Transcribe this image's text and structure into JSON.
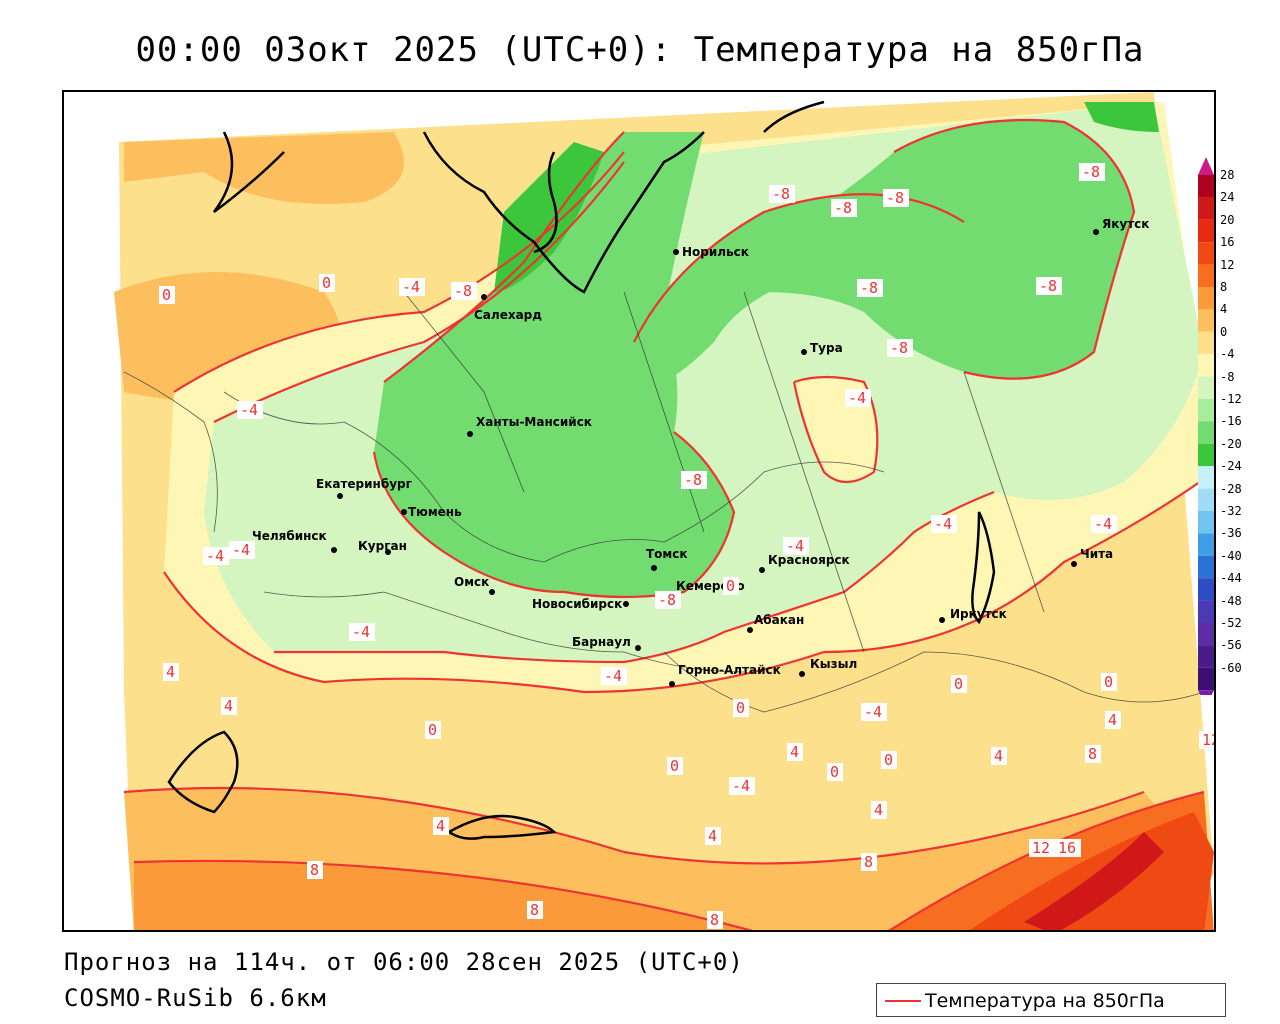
{
  "title": "00:00 03окт 2025 (UTC+0): Температура на 850гПа",
  "footer": {
    "forecast": "Прогноз на 114ч. от 06:00 28сен 2025 (UTC+0)",
    "model": "COSMO-RuSib 6.6км"
  },
  "legend": {
    "label": "Температура на 850гПа",
    "line_color": "#ee3333"
  },
  "colorbar": {
    "labels": [
      "28",
      "24",
      "20",
      "16",
      "12",
      "8",
      "4",
      "0",
      "-4",
      "-8",
      "-12",
      "-16",
      "-20",
      "-24",
      "-28",
      "-32",
      "-36",
      "-40",
      "-44",
      "-48",
      "-52",
      "-56",
      "-60"
    ],
    "colors": [
      "#b00020",
      "#d01818",
      "#e82a10",
      "#f04a14",
      "#f86e20",
      "#fb9a3a",
      "#fdbf5e",
      "#fde08c",
      "#fef6b4",
      "#d4f5c0",
      "#a6ee9c",
      "#72dc70",
      "#3cc63c",
      "#c8f0f8",
      "#a0dcf4",
      "#70c4ee",
      "#409ee6",
      "#2a72d4",
      "#2e4cc4",
      "#4a3ab4",
      "#5c2ca4",
      "#4a1c8a",
      "#3a1070"
    ]
  },
  "cities": [
    {
      "name": "Салехард"
    },
    {
      "name": "Норильск"
    },
    {
      "name": "Якутск"
    },
    {
      "name": "Тура"
    },
    {
      "name": "Ханты-Мансийск"
    },
    {
      "name": "Екатеринбург"
    },
    {
      "name": "Тюмень"
    },
    {
      "name": "Челябинск"
    },
    {
      "name": "Курган"
    },
    {
      "name": "Омск"
    },
    {
      "name": "Новосибирск"
    },
    {
      "name": "Томск"
    },
    {
      "name": "Кемерово"
    },
    {
      "name": "Красноярск"
    },
    {
      "name": "Абакан"
    },
    {
      "name": "Барнаул"
    },
    {
      "name": "Горно-Алтайск"
    },
    {
      "name": "Кызыл"
    },
    {
      "name": "Иркутск"
    },
    {
      "name": "Чита"
    }
  ],
  "isotherm_labels": [
    "0",
    "-4",
    "-8",
    "-8",
    "-8",
    "-8",
    "-8",
    "-8",
    "-8",
    "-8",
    "-8",
    "0",
    "-4",
    "-4",
    "-4",
    "-4",
    "-4",
    "-4",
    "-4",
    "-4",
    "4",
    "4",
    "0",
    "4",
    "8",
    "8",
    "8",
    "4",
    "0",
    "-4",
    "0",
    "4",
    "0",
    "0",
    "4",
    "8",
    "12",
    "16",
    "4",
    "0",
    "0",
    "4",
    "8",
    "12",
    "-4",
    "-4",
    "0",
    "-8"
  ]
}
